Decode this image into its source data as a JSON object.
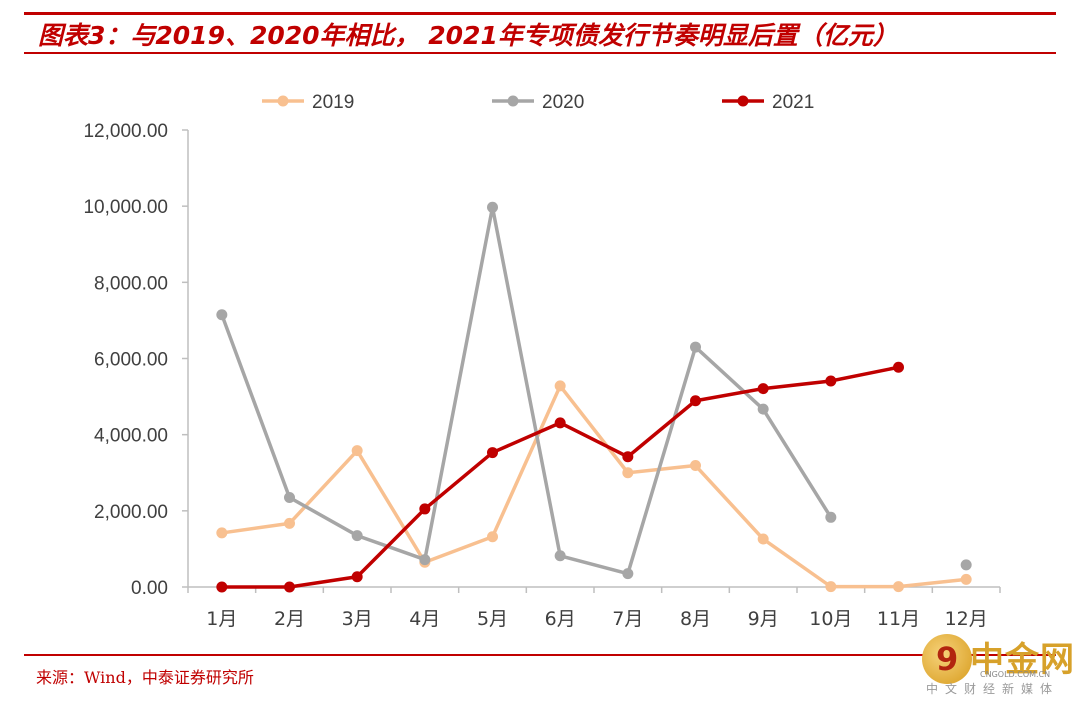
{
  "header": {
    "title": "图表3：与2019、2020年相比， 2021年专项债发行节奏明显后置（亿元）"
  },
  "footer": {
    "source": "来源：Wind，中泰证券研究所"
  },
  "watermark": {
    "name": "中金网",
    "domain": "CNGOLD.COM.CN",
    "tagline": "中文财经新媒体",
    "icon": "gold-coin-logo-icon"
  },
  "colors": {
    "accent": "#c00000",
    "series_2019": "#f8c090",
    "series_2020": "#a6a6a6",
    "series_2021": "#c00000",
    "axis": "#bfbfbf",
    "tick_text": "#404040"
  },
  "chart_data": {
    "type": "line",
    "title": "",
    "xlabel": "",
    "ylabel": "",
    "categories": [
      "1月",
      "2月",
      "3月",
      "4月",
      "5月",
      "6月",
      "7月",
      "8月",
      "9月",
      "10月",
      "11月",
      "12月"
    ],
    "ylim": [
      0,
      12000
    ],
    "yticks": [
      0,
      2000,
      4000,
      6000,
      8000,
      10000,
      12000
    ],
    "ytick_labels": [
      "0.00",
      "2,000.00",
      "4,000.00",
      "6,000.00",
      "8,000.00",
      "10,000.00",
      "12,000.00"
    ],
    "grid": false,
    "legend": "top-center",
    "series": [
      {
        "name": "2019",
        "color": "#f8c090",
        "values": [
          1420,
          1670,
          3580,
          650,
          1320,
          5280,
          3000,
          3190,
          1260,
          10,
          10,
          200
        ]
      },
      {
        "name": "2020",
        "color": "#a6a6a6",
        "values": [
          7150,
          2350,
          1350,
          720,
          9970,
          820,
          350,
          6300,
          4670,
          1830,
          null,
          580
        ]
      },
      {
        "name": "2021",
        "color": "#c00000",
        "values": [
          0,
          0,
          270,
          2050,
          3530,
          4310,
          3420,
          4890,
          5210,
          5410,
          5770,
          null
        ]
      }
    ]
  }
}
